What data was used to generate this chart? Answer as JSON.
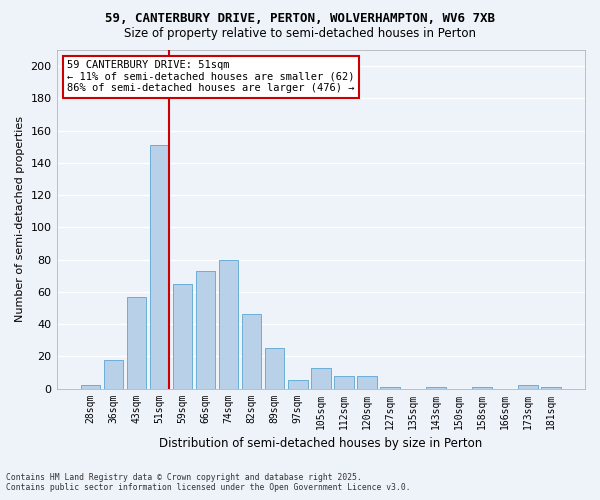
{
  "title_line1": "59, CANTERBURY DRIVE, PERTON, WOLVERHAMPTON, WV6 7XB",
  "title_line2": "Size of property relative to semi-detached houses in Perton",
  "xlabel": "Distribution of semi-detached houses by size in Perton",
  "ylabel": "Number of semi-detached properties",
  "categories": [
    "28sqm",
    "36sqm",
    "43sqm",
    "51sqm",
    "59sqm",
    "66sqm",
    "74sqm",
    "82sqm",
    "89sqm",
    "97sqm",
    "105sqm",
    "112sqm",
    "120sqm",
    "127sqm",
    "135sqm",
    "143sqm",
    "150sqm",
    "158sqm",
    "166sqm",
    "173sqm",
    "181sqm"
  ],
  "values": [
    2,
    18,
    57,
    151,
    65,
    73,
    80,
    46,
    25,
    5,
    13,
    8,
    8,
    1,
    0,
    1,
    0,
    1,
    0,
    2,
    1
  ],
  "bar_color": "#b8d0e8",
  "bar_edge_color": "#6aaed6",
  "vline_index": 3,
  "vline_color": "#cc0000",
  "annotation_title": "59 CANTERBURY DRIVE: 51sqm",
  "annotation_line1": "← 11% of semi-detached houses are smaller (62)",
  "annotation_line2": "86% of semi-detached houses are larger (476) →",
  "annotation_box_edgecolor": "#cc0000",
  "ylim": [
    0,
    210
  ],
  "yticks": [
    0,
    20,
    40,
    60,
    80,
    100,
    120,
    140,
    160,
    180,
    200
  ],
  "footnote1": "Contains HM Land Registry data © Crown copyright and database right 2025.",
  "footnote2": "Contains public sector information licensed under the Open Government Licence v3.0.",
  "background_color": "#eef2f9",
  "grid_color": "#ffffff"
}
